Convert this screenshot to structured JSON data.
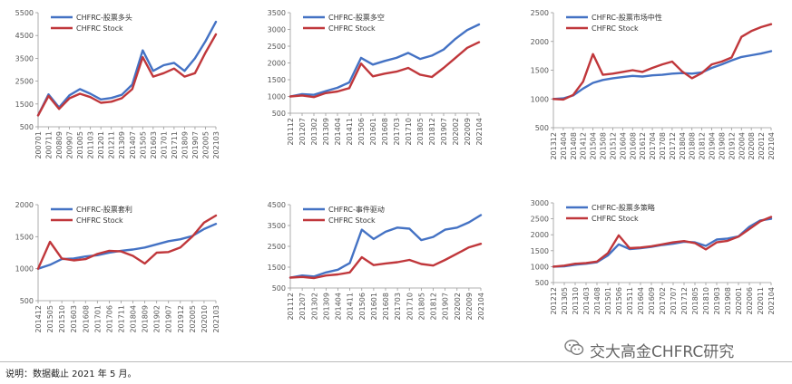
{
  "legend": {
    "stock_label": "CHFRC Stock"
  },
  "colors": {
    "strategy": "#4472c4",
    "stock": "#c0373b",
    "axis": "#999999"
  },
  "footer": {
    "note": "说明：数据截止 2021 年 5 月。",
    "watermark": "交大高金CHFRC研究",
    "watermark_icon": "wechat-icon"
  },
  "chart_data": [
    {
      "type": "line",
      "title": "",
      "ylim": [
        500,
        5500
      ],
      "yticks": [
        500,
        1500,
        2500,
        3500,
        4500,
        5500
      ],
      "categories": [
        "200701",
        "200711",
        "200809",
        "200907",
        "201005",
        "201103",
        "201201",
        "201211",
        "201309",
        "201407",
        "201505",
        "201603",
        "201701",
        "201711",
        "201809",
        "201907",
        "202005",
        "202103"
      ],
      "series": [
        {
          "name": "CHFRC-股票多头",
          "values": [
            1000,
            1920,
            1350,
            1880,
            2150,
            1950,
            1700,
            1760,
            1900,
            2350,
            3850,
            2950,
            3200,
            3300,
            2950,
            3500,
            4250,
            5100
          ]
        },
        {
          "name": "CHFRC Stock",
          "values": [
            1000,
            1850,
            1280,
            1750,
            1950,
            1800,
            1550,
            1600,
            1750,
            2150,
            3550,
            2700,
            2850,
            3050,
            2700,
            2850,
            3750,
            4550
          ]
        }
      ]
    },
    {
      "type": "line",
      "title": "",
      "ylim": [
        500,
        3500
      ],
      "yticks": [
        500,
        1000,
        1500,
        2000,
        2500,
        3000,
        3500
      ],
      "categories": [
        "201112",
        "201207",
        "201302",
        "201309",
        "201404",
        "201411",
        "201506",
        "201601",
        "201608",
        "201703",
        "201710",
        "201805",
        "201812",
        "201907",
        "202002",
        "202009",
        "202104"
      ],
      "series": [
        {
          "name": "CHFRC-股票多空",
          "values": [
            1000,
            1070,
            1050,
            1160,
            1260,
            1420,
            2150,
            1950,
            2060,
            2150,
            2300,
            2120,
            2220,
            2400,
            2720,
            2980,
            3150
          ]
        },
        {
          "name": "CHFRC Stock",
          "values": [
            1000,
            1030,
            980,
            1100,
            1150,
            1250,
            1980,
            1600,
            1680,
            1740,
            1850,
            1650,
            1580,
            1850,
            2150,
            2450,
            2620
          ]
        }
      ]
    },
    {
      "type": "line",
      "title": "",
      "ylim": [
        500,
        2500
      ],
      "yticks": [
        500,
        1000,
        1500,
        2000,
        2500
      ],
      "categories": [
        "201312",
        "201404",
        "201408",
        "201412",
        "201504",
        "201508",
        "201512",
        "201604",
        "201608",
        "201612",
        "201704",
        "201708",
        "201712",
        "201804",
        "201808",
        "201812",
        "201904",
        "201908",
        "201912",
        "202004",
        "202008",
        "202012",
        "202104"
      ],
      "series": [
        {
          "name": "CHFRC-股票市场中性",
          "values": [
            1000,
            1010,
            1060,
            1180,
            1280,
            1330,
            1360,
            1380,
            1400,
            1390,
            1410,
            1420,
            1440,
            1450,
            1440,
            1460,
            1540,
            1600,
            1670,
            1730,
            1760,
            1790,
            1830
          ]
        },
        {
          "name": "CHFRC Stock",
          "values": [
            1000,
            990,
            1070,
            1300,
            1780,
            1420,
            1440,
            1470,
            1500,
            1470,
            1540,
            1600,
            1650,
            1480,
            1360,
            1450,
            1600,
            1650,
            1720,
            2080,
            2180,
            2250,
            2300
          ]
        }
      ]
    },
    {
      "type": "line",
      "title": "",
      "ylim": [
        500,
        2000
      ],
      "yticks": [
        500,
        1000,
        1500,
        2000
      ],
      "categories": [
        "201412",
        "201505",
        "201510",
        "201603",
        "201608",
        "201701",
        "201706",
        "201711",
        "201804",
        "201809",
        "201902",
        "201907",
        "201912",
        "202005",
        "202010",
        "202103"
      ],
      "series": [
        {
          "name": "CHFRC-股票套利",
          "values": [
            1000,
            1060,
            1150,
            1160,
            1190,
            1210,
            1250,
            1280,
            1300,
            1330,
            1380,
            1430,
            1460,
            1510,
            1620,
            1700
          ]
        },
        {
          "name": "CHFRC Stock",
          "values": [
            1000,
            1420,
            1160,
            1130,
            1150,
            1230,
            1280,
            1270,
            1200,
            1080,
            1250,
            1260,
            1330,
            1500,
            1720,
            1830
          ]
        }
      ]
    },
    {
      "type": "line",
      "title": "",
      "ylim": [
        500,
        4500
      ],
      "yticks": [
        500,
        1500,
        2500,
        3500,
        4500
      ],
      "categories": [
        "201112",
        "201207",
        "201302",
        "201309",
        "201404",
        "201411",
        "201506",
        "201601",
        "201608",
        "201703",
        "201710",
        "201805",
        "201812",
        "201907",
        "202002",
        "202009",
        "202104"
      ],
      "series": [
        {
          "name": "CHFRC-事件驱动",
          "values": [
            1000,
            1100,
            1050,
            1250,
            1380,
            1700,
            3300,
            2850,
            3200,
            3400,
            3350,
            2800,
            2950,
            3300,
            3400,
            3650,
            4000
          ]
        },
        {
          "name": "CHFRC Stock",
          "values": [
            1000,
            1030,
            980,
            1100,
            1150,
            1250,
            1980,
            1600,
            1680,
            1740,
            1850,
            1650,
            1580,
            1850,
            2150,
            2450,
            2620
          ]
        }
      ]
    },
    {
      "type": "line",
      "title": "",
      "ylim": [
        500,
        3000
      ],
      "yticks": [
        500,
        1000,
        1500,
        2000,
        2500,
        3000
      ],
      "categories": [
        "201212",
        "201305",
        "201310",
        "201403",
        "201408",
        "201501",
        "201506",
        "201511",
        "201604",
        "201609",
        "201702",
        "201707",
        "201712",
        "201805",
        "201810",
        "201903",
        "201908",
        "202001",
        "202006",
        "202011",
        "202104"
      ],
      "series": [
        {
          "name": "CHFRC-股票多策略",
          "values": [
            1000,
            1010,
            1060,
            1090,
            1140,
            1350,
            1700,
            1550,
            1580,
            1620,
            1680,
            1720,
            1780,
            1760,
            1650,
            1850,
            1880,
            1950,
            2250,
            2450,
            2500
          ]
        },
        {
          "name": "CHFRC Stock",
          "values": [
            1000,
            1030,
            1090,
            1110,
            1160,
            1420,
            1980,
            1580,
            1600,
            1640,
            1700,
            1760,
            1800,
            1740,
            1540,
            1760,
            1810,
            1940,
            2180,
            2420,
            2560
          ]
        }
      ]
    }
  ]
}
